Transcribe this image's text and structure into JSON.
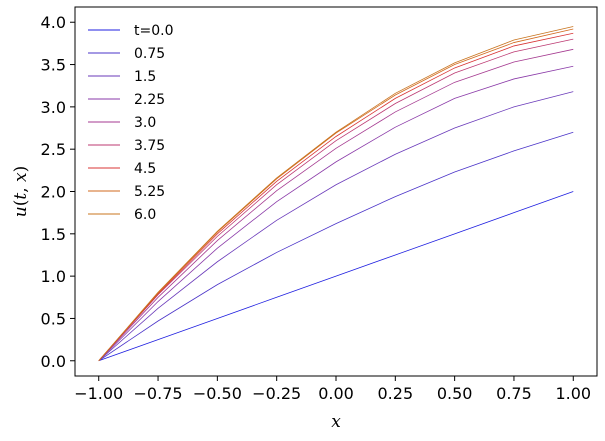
{
  "chart_data": {
    "type": "line",
    "title": "",
    "xlabel": "x",
    "ylabel": "u(t,x)",
    "ylabel_parts": [
      "u",
      "(",
      "t",
      ", ",
      "x",
      ")"
    ],
    "xlim": [
      -1.1,
      1.1
    ],
    "ylim": [
      -0.18,
      4.18
    ],
    "xticks": [
      -1.0,
      -0.75,
      -0.5,
      -0.25,
      0.0,
      0.25,
      0.5,
      0.75,
      1.0
    ],
    "xtick_labels": [
      "−1.00",
      "−0.75",
      "−0.50",
      "−0.25",
      "0.00",
      "0.25",
      "0.50",
      "0.75",
      "1.00"
    ],
    "yticks": [
      0.0,
      0.5,
      1.0,
      1.5,
      2.0,
      2.5,
      3.0,
      3.5,
      4.0
    ],
    "ytick_labels": [
      "0.0",
      "0.5",
      "1.0",
      "1.5",
      "2.0",
      "2.5",
      "3.0",
      "3.5",
      "4.0"
    ],
    "grid": false,
    "legend_position": "top-left",
    "x": [
      -1.0,
      -0.75,
      -0.5,
      -0.25,
      0.0,
      0.25,
      0.5,
      0.75,
      1.0
    ],
    "series": [
      {
        "name": "t=0.0",
        "color": "#1f1fe0",
        "values": [
          0.0,
          0.25,
          0.5,
          0.75,
          1.0,
          1.25,
          1.5,
          1.75,
          2.0
        ]
      },
      {
        "name": "0.75",
        "color": "#4a33c8",
        "values": [
          0.0,
          0.47,
          0.9,
          1.28,
          1.62,
          1.94,
          2.23,
          2.48,
          2.7
        ]
      },
      {
        "name": "1.5",
        "color": "#6a3aba",
        "values": [
          0.0,
          0.62,
          1.17,
          1.66,
          2.08,
          2.44,
          2.75,
          3.0,
          3.18
        ]
      },
      {
        "name": "2.25",
        "color": "#8a3aa8",
        "values": [
          0.0,
          0.7,
          1.33,
          1.88,
          2.35,
          2.76,
          3.1,
          3.33,
          3.48
        ]
      },
      {
        "name": "3.0",
        "color": "#a53a90",
        "values": [
          0.0,
          0.75,
          1.42,
          2.01,
          2.51,
          2.94,
          3.29,
          3.53,
          3.68
        ]
      },
      {
        "name": "3.75",
        "color": "#bc3a72",
        "values": [
          0.0,
          0.78,
          1.47,
          2.08,
          2.6,
          3.04,
          3.4,
          3.65,
          3.8
        ]
      },
      {
        "name": "4.5",
        "color": "#d83434",
        "values": [
          0.0,
          0.79,
          1.5,
          2.12,
          2.65,
          3.1,
          3.46,
          3.72,
          3.87
        ]
      },
      {
        "name": "5.25",
        "color": "#d2691e",
        "values": [
          0.0,
          0.8,
          1.52,
          2.15,
          2.69,
          3.14,
          3.5,
          3.76,
          3.92
        ]
      },
      {
        "name": "6.0",
        "color": "#c8741e",
        "values": [
          0.0,
          0.81,
          1.53,
          2.16,
          2.7,
          3.16,
          3.52,
          3.79,
          3.95
        ]
      }
    ]
  }
}
